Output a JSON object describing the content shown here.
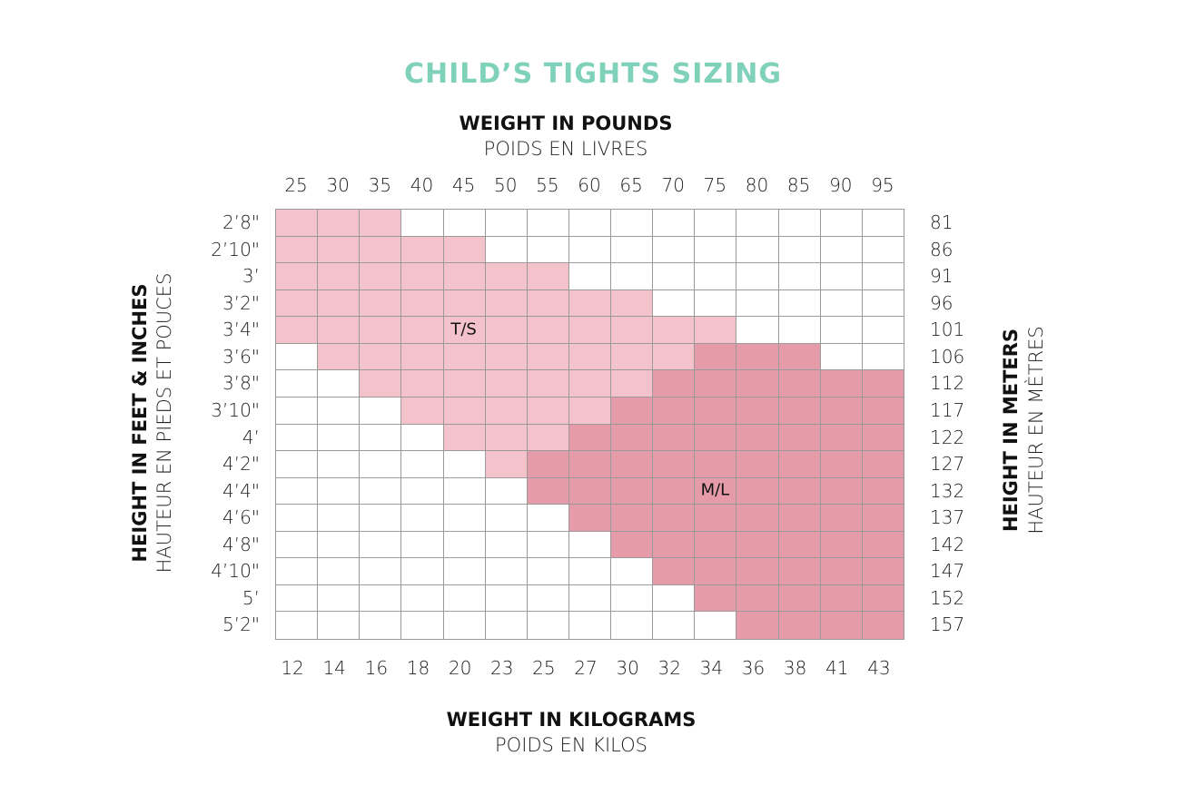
{
  "chart_data": {
    "type": "heatmap",
    "title": "CHILD’S TIGHTS SIZING",
    "top_axis": {
      "label": "WEIGHT IN POUNDS",
      "sublabel": "POIDS EN LIVRES",
      "ticks": [
        "25",
        "30",
        "35",
        "40",
        "45",
        "50",
        "55",
        "60",
        "65",
        "70",
        "75",
        "80",
        "85",
        "90",
        "95"
      ]
    },
    "bottom_axis": {
      "label": "WEIGHT IN KILOGRAMS",
      "sublabel": "POIDS EN KILOS",
      "ticks": [
        "12",
        "14",
        "16",
        "18",
        "20",
        "23",
        "25",
        "27",
        "30",
        "32",
        "34",
        "36",
        "38",
        "41",
        "43"
      ]
    },
    "left_axis": {
      "label": "HEIGHT IN FEET & INCHES",
      "sublabel": "HAUTEUR EN PIEDS ET POUCES",
      "ticks": [
        "2’8\"",
        "2’10\"",
        "3’",
        "3’2\"",
        "3’4\"",
        "3’6\"",
        "3’8\"",
        "3’10\"",
        "4’",
        "4’2\"",
        "4’4\"",
        "4’6\"",
        "4’8\"",
        "4’10\"",
        "5’",
        "5’2\""
      ]
    },
    "right_axis": {
      "label": "HEIGHT IN METERS",
      "sublabel": "HAUTEUR EN MÈTRES",
      "ticks": [
        "81",
        "86",
        "91",
        "96",
        "101",
        "106",
        "112",
        "117",
        "122",
        "127",
        "132",
        "137",
        "142",
        "147",
        "152",
        "157"
      ]
    },
    "sizes": [
      {
        "code": 1,
        "label": "T/S",
        "color": "#f4c2ca",
        "label_cell": [
          4,
          4.5
        ]
      },
      {
        "code": 2,
        "label": "M/L",
        "color": "#e59ba8",
        "label_cell": [
          10,
          10.5
        ]
      }
    ],
    "empty_color": "#ffffff",
    "grid_color": "#9a9a9a",
    "title_color": "#7fd1b9",
    "cells": [
      [
        1,
        1,
        1,
        0,
        0,
        0,
        0,
        0,
        0,
        0,
        0,
        0,
        0,
        0,
        0
      ],
      [
        1,
        1,
        1,
        1,
        1,
        0,
        0,
        0,
        0,
        0,
        0,
        0,
        0,
        0,
        0
      ],
      [
        1,
        1,
        1,
        1,
        1,
        1,
        1,
        0,
        0,
        0,
        0,
        0,
        0,
        0,
        0
      ],
      [
        1,
        1,
        1,
        1,
        1,
        1,
        1,
        1,
        1,
        0,
        0,
        0,
        0,
        0,
        0
      ],
      [
        1,
        1,
        1,
        1,
        1,
        1,
        1,
        1,
        1,
        1,
        1,
        0,
        0,
        0,
        0
      ],
      [
        0,
        1,
        1,
        1,
        1,
        1,
        1,
        1,
        1,
        1,
        2,
        2,
        2,
        0,
        0
      ],
      [
        0,
        0,
        1,
        1,
        1,
        1,
        1,
        1,
        1,
        2,
        2,
        2,
        2,
        2,
        2
      ],
      [
        0,
        0,
        0,
        1,
        1,
        1,
        1,
        1,
        2,
        2,
        2,
        2,
        2,
        2,
        2
      ],
      [
        0,
        0,
        0,
        0,
        1,
        1,
        1,
        2,
        2,
        2,
        2,
        2,
        2,
        2,
        2
      ],
      [
        0,
        0,
        0,
        0,
        0,
        1,
        2,
        2,
        2,
        2,
        2,
        2,
        2,
        2,
        2
      ],
      [
        0,
        0,
        0,
        0,
        0,
        0,
        2,
        2,
        2,
        2,
        2,
        2,
        2,
        2,
        2
      ],
      [
        0,
        0,
        0,
        0,
        0,
        0,
        0,
        2,
        2,
        2,
        2,
        2,
        2,
        2,
        2
      ],
      [
        0,
        0,
        0,
        0,
        0,
        0,
        0,
        0,
        2,
        2,
        2,
        2,
        2,
        2,
        2
      ],
      [
        0,
        0,
        0,
        0,
        0,
        0,
        0,
        0,
        0,
        2,
        2,
        2,
        2,
        2,
        2
      ],
      [
        0,
        0,
        0,
        0,
        0,
        0,
        0,
        0,
        0,
        0,
        2,
        2,
        2,
        2,
        2
      ],
      [
        0,
        0,
        0,
        0,
        0,
        0,
        0,
        0,
        0,
        0,
        0,
        2,
        2,
        2,
        2
      ]
    ]
  }
}
